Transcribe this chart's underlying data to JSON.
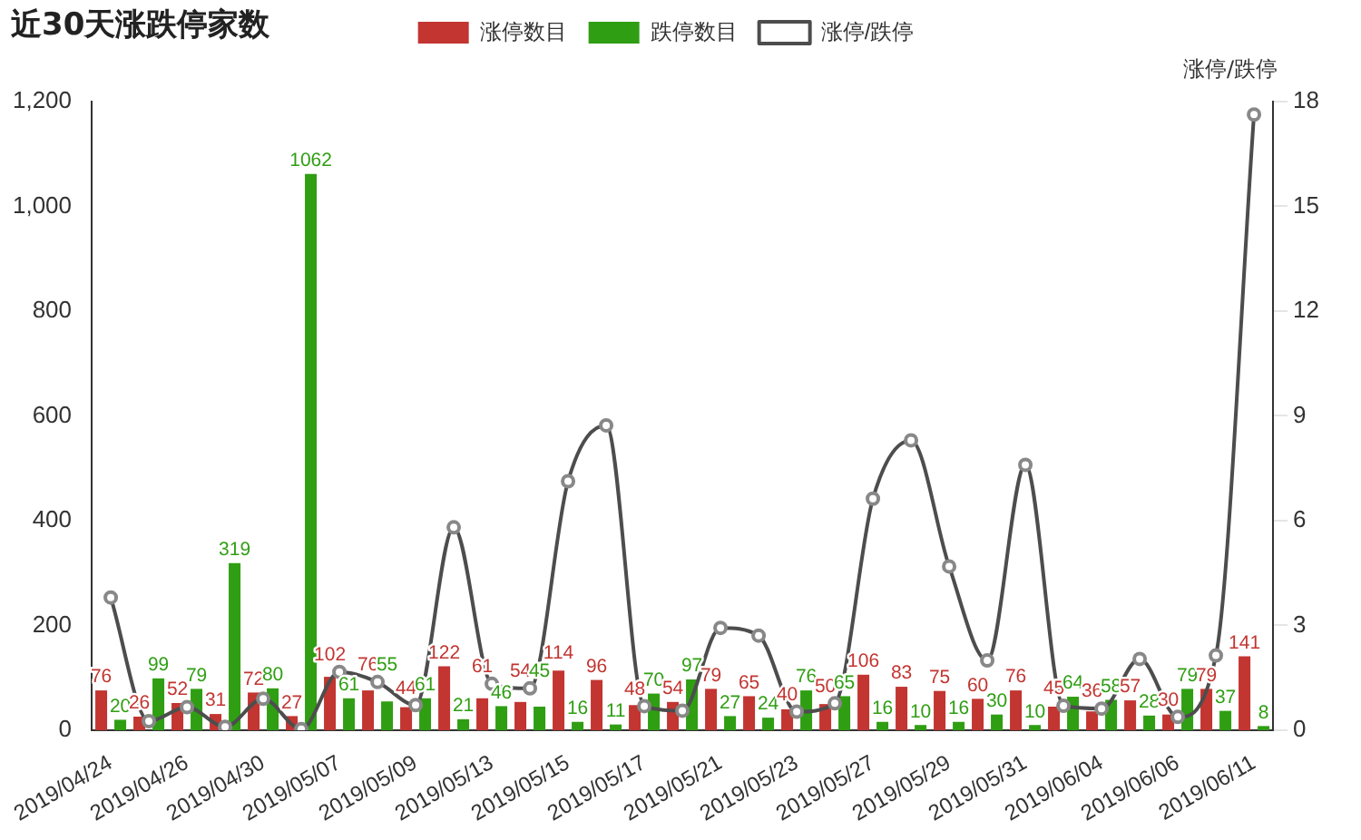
{
  "chart_data": {
    "type": "bar",
    "title": "近30天涨跌停家数",
    "y2label": "涨停/跌停",
    "categories": [
      "2019/04/24",
      null,
      "2019/04/26",
      null,
      "2019/04/30",
      null,
      "2019/05/07",
      null,
      "2019/05/09",
      null,
      "2019/05/13",
      null,
      "2019/05/15",
      null,
      "2019/05/17",
      null,
      "2019/05/21",
      null,
      "2019/05/23",
      null,
      "2019/05/27",
      null,
      "2019/05/29",
      null,
      "2019/05/31",
      null,
      "2019/06/04",
      null,
      "2019/06/06",
      null,
      "2019/06/11"
    ],
    "series": [
      {
        "name": "涨停数目",
        "color": "#c23531",
        "values": [
          76,
          26,
          52,
          31,
          72,
          27,
          102,
          76,
          44,
          122,
          61,
          54,
          114,
          96,
          48,
          54,
          79,
          65,
          40,
          50,
          106,
          83,
          75,
          60,
          76,
          45,
          36,
          57,
          30,
          79,
          141
        ],
        "value_labels": [
          "76",
          "26",
          "52",
          "31",
          "72",
          "27",
          "102",
          "76",
          "44",
          "122",
          "61",
          "54",
          "114",
          "96",
          "48",
          "54",
          "79",
          "65",
          "40",
          "50",
          "106",
          "83",
          "75",
          "60",
          "76",
          "45",
          "36",
          "57",
          "30",
          "79",
          "141"
        ]
      },
      {
        "name": "跌停数目",
        "color": "#2f9e13",
        "values": [
          20,
          99,
          79,
          319,
          80,
          1062,
          61,
          55,
          61,
          21,
          46,
          45,
          16,
          11,
          70,
          97,
          27,
          24,
          76,
          65,
          16,
          10,
          16,
          30,
          10,
          64,
          58,
          28,
          79,
          37,
          8
        ],
        "value_labels": [
          "20",
          "99",
          "79",
          "319",
          "80",
          "1062",
          "61",
          "55",
          "61",
          "21",
          "46",
          "45",
          "16",
          "11",
          "70",
          "97",
          "27",
          "24",
          "76",
          "65",
          "16",
          "10",
          "16",
          "30",
          "10",
          "64",
          "58",
          "28",
          "79",
          "37",
          "8"
        ]
      },
      {
        "name": "涨停/跌停",
        "type": "line",
        "axis": "y2",
        "color": "#4d4d4d",
        "values": [
          3.8,
          0.26,
          0.66,
          0.1,
          0.9,
          0.03,
          1.67,
          1.38,
          0.72,
          5.81,
          1.33,
          1.2,
          7.13,
          8.73,
          0.69,
          0.56,
          2.93,
          2.71,
          0.53,
          0.77,
          6.63,
          8.3,
          4.69,
          2,
          7.6,
          0.7,
          0.62,
          2.04,
          0.38,
          2.14,
          17.63
        ]
      }
    ],
    "ylim": [
      0,
      1200
    ],
    "yticks": [
      {
        "value": 0,
        "label": "0"
      },
      {
        "value": 200,
        "label": "200"
      },
      {
        "value": 400,
        "label": "400"
      },
      {
        "value": 600,
        "label": "600"
      },
      {
        "value": 800,
        "label": "800"
      },
      {
        "value": 1000,
        "label": "1,000"
      },
      {
        "value": 1200,
        "label": "1,200"
      }
    ],
    "y2lim": [
      0,
      18
    ],
    "y2ticks": [
      0,
      3,
      6,
      9,
      12,
      15,
      18
    ],
    "grid": false,
    "legend": "top",
    "marker": "circle",
    "line_style": "solid"
  }
}
